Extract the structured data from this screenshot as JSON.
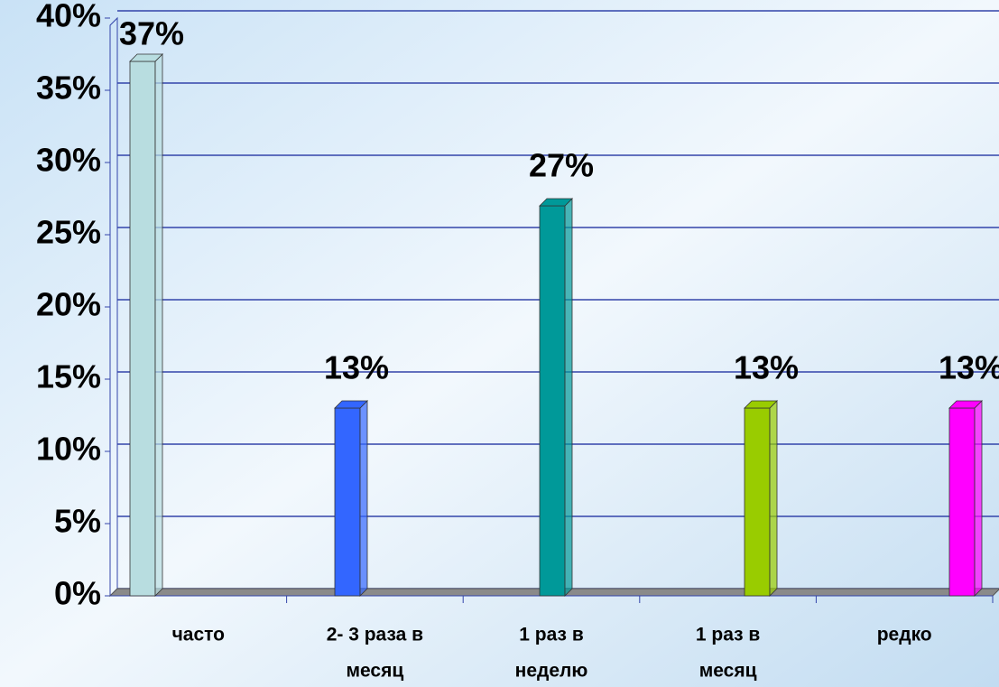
{
  "chart_data": {
    "type": "bar",
    "categories": [
      [
        "часто"
      ],
      [
        "2- 3 раза в",
        "месяц"
      ],
      [
        "1 раз  в",
        "неделю"
      ],
      [
        "1 раз в",
        "месяц"
      ],
      [
        "редко"
      ]
    ],
    "values": [
      37,
      13,
      27,
      13,
      13
    ],
    "value_labels": [
      "37%",
      "13%",
      "27%",
      "13%",
      "13%"
    ],
    "colors": [
      "#b8dde0",
      "#3366ff",
      "#009999",
      "#99cc00",
      "#ff00ff"
    ],
    "ylim": [
      0,
      40
    ],
    "yticks": [
      {
        "value": 0,
        "label": "0%"
      },
      {
        "value": 5,
        "label": "5%"
      },
      {
        "value": 10,
        "label": "10%"
      },
      {
        "value": 15,
        "label": "15%"
      },
      {
        "value": 20,
        "label": "20%"
      },
      {
        "value": 25,
        "label": "25%"
      },
      {
        "value": 30,
        "label": "30%"
      },
      {
        "value": 35,
        "label": "35%"
      },
      {
        "value": 40,
        "label": "40%"
      }
    ],
    "grid": true
  }
}
